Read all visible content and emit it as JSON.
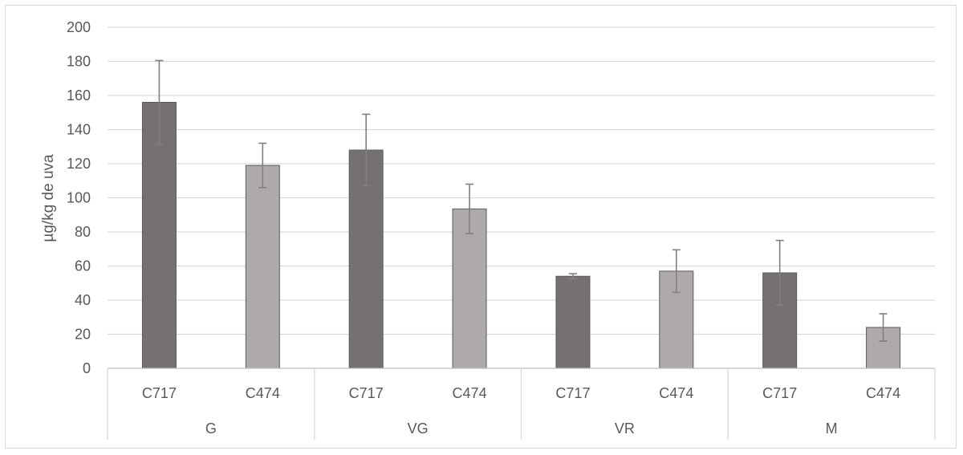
{
  "chart_data": {
    "type": "bar",
    "title": "",
    "xlabel": "",
    "ylabel": "µg/kg de uva",
    "ylim": [
      0,
      200
    ],
    "yticks": [
      0,
      20,
      40,
      60,
      80,
      100,
      120,
      140,
      160,
      180,
      200
    ],
    "grid": true,
    "groups": [
      "G",
      "VG",
      "VR",
      "M"
    ],
    "categories": [
      "C717",
      "C474",
      "C717",
      "C474",
      "C717",
      "C474",
      "C717",
      "C474"
    ],
    "values": [
      156,
      119,
      128,
      93.5,
      54,
      57,
      56,
      24
    ],
    "errors": [
      24.5,
      13,
      21,
      14.5,
      1.5,
      12.5,
      19,
      8
    ],
    "colors": {
      "C717": "#757171",
      "C474": "#aeaaaa",
      "error_bar": "#808080",
      "grid": "#d9d9d9",
      "text": "#595959"
    }
  }
}
